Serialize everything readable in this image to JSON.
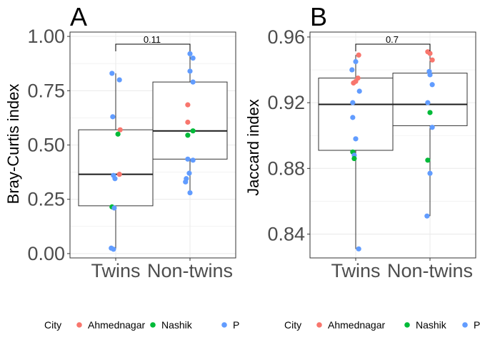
{
  "legend": {
    "title": "City",
    "entries": [
      {
        "name": "Ahmednagar",
        "color": "#F8766D"
      },
      {
        "name": "Nashik",
        "color": "#00BA38"
      },
      {
        "name": "P",
        "color": "#619CFF"
      }
    ]
  },
  "chart_data": [
    {
      "type": "box",
      "panel": "A",
      "ylabel": "Bray-Curtis index",
      "xlabel": "",
      "categories": [
        "Twins",
        "Non-twins"
      ],
      "ylim": [
        -0.02,
        1.02
      ],
      "yticks": [
        "0.00",
        "0.25",
        "0.50",
        "0.75",
        "1.00"
      ],
      "ytick_values": [
        0,
        0.25,
        0.5,
        0.75,
        1.0
      ],
      "grid": true,
      "pvalue": "0.11",
      "boxes": [
        {
          "category": "Twins",
          "min": 0.02,
          "q1": 0.22,
          "median": 0.365,
          "q3": 0.57,
          "max": 0.83
        },
        {
          "category": "Non-twins",
          "min": 0.28,
          "q1": 0.435,
          "median": 0.565,
          "q3": 0.79,
          "max": 0.92
        }
      ],
      "points": [
        {
          "category": "Twins",
          "offset": -0.05,
          "y": 0.83,
          "city": "P"
        },
        {
          "category": "Twins",
          "offset": 0.05,
          "y": 0.8,
          "city": "P"
        },
        {
          "category": "Twins",
          "offset": -0.04,
          "y": 0.63,
          "city": "P"
        },
        {
          "category": "Twins",
          "offset": 0.06,
          "y": 0.57,
          "city": "Ahmednagar"
        },
        {
          "category": "Twins",
          "offset": 0.03,
          "y": 0.55,
          "city": "Nashik"
        },
        {
          "category": "Twins",
          "offset": 0.05,
          "y": 0.365,
          "city": "Ahmednagar"
        },
        {
          "category": "Twins",
          "offset": -0.03,
          "y": 0.36,
          "city": "P"
        },
        {
          "category": "Twins",
          "offset": -0.01,
          "y": 0.345,
          "city": "P"
        },
        {
          "category": "Twins",
          "offset": -0.05,
          "y": 0.215,
          "city": "Nashik"
        },
        {
          "category": "Twins",
          "offset": -0.02,
          "y": 0.21,
          "city": "P"
        },
        {
          "category": "Twins",
          "offset": -0.06,
          "y": 0.025,
          "city": "P"
        },
        {
          "category": "Twins",
          "offset": -0.03,
          "y": 0.02,
          "city": "P"
        },
        {
          "category": "Non-twins",
          "offset": 0.0,
          "y": 0.92,
          "city": "P"
        },
        {
          "category": "Non-twins",
          "offset": 0.04,
          "y": 0.9,
          "city": "P"
        },
        {
          "category": "Non-twins",
          "offset": 0.0,
          "y": 0.84,
          "city": "P"
        },
        {
          "category": "Non-twins",
          "offset": 0.04,
          "y": 0.79,
          "city": "P"
        },
        {
          "category": "Non-twins",
          "offset": -0.03,
          "y": 0.685,
          "city": "Ahmednagar"
        },
        {
          "category": "Non-twins",
          "offset": -0.03,
          "y": 0.605,
          "city": "Ahmednagar"
        },
        {
          "category": "Non-twins",
          "offset": 0.04,
          "y": 0.565,
          "city": "Nashik"
        },
        {
          "category": "Non-twins",
          "offset": -0.03,
          "y": 0.545,
          "city": "Nashik"
        },
        {
          "category": "Non-twins",
          "offset": -0.03,
          "y": 0.435,
          "city": "P"
        },
        {
          "category": "Non-twins",
          "offset": 0.04,
          "y": 0.43,
          "city": "P"
        },
        {
          "category": "Non-twins",
          "offset": -0.01,
          "y": 0.37,
          "city": "P"
        },
        {
          "category": "Non-twins",
          "offset": -0.05,
          "y": 0.345,
          "city": "P"
        },
        {
          "category": "Non-twins",
          "offset": -0.06,
          "y": 0.33,
          "city": "P"
        },
        {
          "category": "Non-twins",
          "offset": 0.0,
          "y": 0.28,
          "city": "P"
        }
      ]
    },
    {
      "type": "box",
      "panel": "B",
      "ylabel": "Jaccard index",
      "xlabel": "",
      "categories": [
        "Twins",
        "Non-twins"
      ],
      "ylim": [
        0.8255,
        0.963
      ],
      "yticks": [
        "0.84",
        "0.88",
        "0.92",
        "0.96"
      ],
      "ytick_values": [
        0.84,
        0.88,
        0.92,
        0.96
      ],
      "grid": true,
      "pvalue": "0.7",
      "boxes": [
        {
          "category": "Twins",
          "min": 0.831,
          "q1": 0.891,
          "median": 0.919,
          "q3": 0.935,
          "max": 0.949
        },
        {
          "category": "Non-twins",
          "min": 0.851,
          "q1": 0.906,
          "median": 0.919,
          "q3": 0.938,
          "max": 0.951
        }
      ],
      "points": [
        {
          "category": "Twins",
          "offset": 0.04,
          "y": 0.949,
          "city": "Ahmednagar"
        },
        {
          "category": "Twins",
          "offset": 0.0,
          "y": 0.945,
          "city": "P"
        },
        {
          "category": "Twins",
          "offset": -0.05,
          "y": 0.94,
          "city": "P"
        },
        {
          "category": "Twins",
          "offset": 0.03,
          "y": 0.935,
          "city": "Ahmednagar"
        },
        {
          "category": "Twins",
          "offset": 0.0,
          "y": 0.933,
          "city": "Ahmednagar"
        },
        {
          "category": "Twins",
          "offset": -0.03,
          "y": 0.932,
          "city": "Ahmednagar"
        },
        {
          "category": "Twins",
          "offset": 0.05,
          "y": 0.927,
          "city": "P"
        },
        {
          "category": "Twins",
          "offset": -0.04,
          "y": 0.92,
          "city": "P"
        },
        {
          "category": "Twins",
          "offset": -0.04,
          "y": 0.911,
          "city": "P"
        },
        {
          "category": "Twins",
          "offset": 0.0,
          "y": 0.898,
          "city": "P"
        },
        {
          "category": "Twins",
          "offset": -0.04,
          "y": 0.89,
          "city": "Nashik"
        },
        {
          "category": "Twins",
          "offset": -0.02,
          "y": 0.888,
          "city": "P"
        },
        {
          "category": "Twins",
          "offset": -0.02,
          "y": 0.886,
          "city": "Nashik"
        },
        {
          "category": "Twins",
          "offset": 0.04,
          "y": 0.831,
          "city": "P"
        },
        {
          "category": "Non-twins",
          "offset": -0.03,
          "y": 0.951,
          "city": "Ahmednagar"
        },
        {
          "category": "Non-twins",
          "offset": 0.0,
          "y": 0.95,
          "city": "Ahmednagar"
        },
        {
          "category": "Non-twins",
          "offset": 0.03,
          "y": 0.946,
          "city": "Ahmednagar"
        },
        {
          "category": "Non-twins",
          "offset": -0.01,
          "y": 0.939,
          "city": "P"
        },
        {
          "category": "Non-twins",
          "offset": 0.0,
          "y": 0.937,
          "city": "P"
        },
        {
          "category": "Non-twins",
          "offset": 0.03,
          "y": 0.931,
          "city": "P"
        },
        {
          "category": "Non-twins",
          "offset": -0.03,
          "y": 0.92,
          "city": "P"
        },
        {
          "category": "Non-twins",
          "offset": 0.0,
          "y": 0.914,
          "city": "Nashik"
        },
        {
          "category": "Non-twins",
          "offset": 0.03,
          "y": 0.905,
          "city": "P"
        },
        {
          "category": "Non-twins",
          "offset": -0.03,
          "y": 0.885,
          "city": "Nashik"
        },
        {
          "category": "Non-twins",
          "offset": 0.0,
          "y": 0.877,
          "city": "P"
        },
        {
          "category": "Non-twins",
          "offset": -0.04,
          "y": 0.851,
          "city": "P"
        }
      ]
    }
  ]
}
